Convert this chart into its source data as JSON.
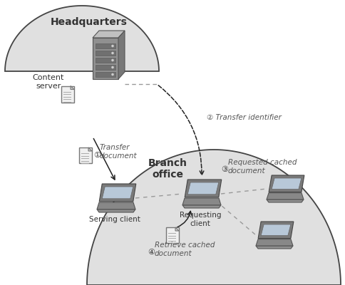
{
  "white": "#ffffff",
  "bubble_fill": "#e0e0e0",
  "bubble_edge": "#444444",
  "hq_label": "Headquarters",
  "branch_label": "Branch\noffice",
  "content_server_label": "Content\nserver",
  "serving_client_label": "Serving client",
  "requesting_client_label": "Requesting\nclient",
  "step1_circle": "①",
  "step1_text": " Transfer\n document",
  "step2_circle": "②",
  "step2_text": " Transfer identifier",
  "step3_circle": "③",
  "step3_text": " Requested cached\n document",
  "step4_circle": "④",
  "step4_text": " Retrieve cached\n document",
  "text_color": "#333333",
  "blue_text": "#4472c4",
  "arrow_dark": "#222222",
  "dashed_gray": "#999999",
  "step_italic_color": "#555555"
}
